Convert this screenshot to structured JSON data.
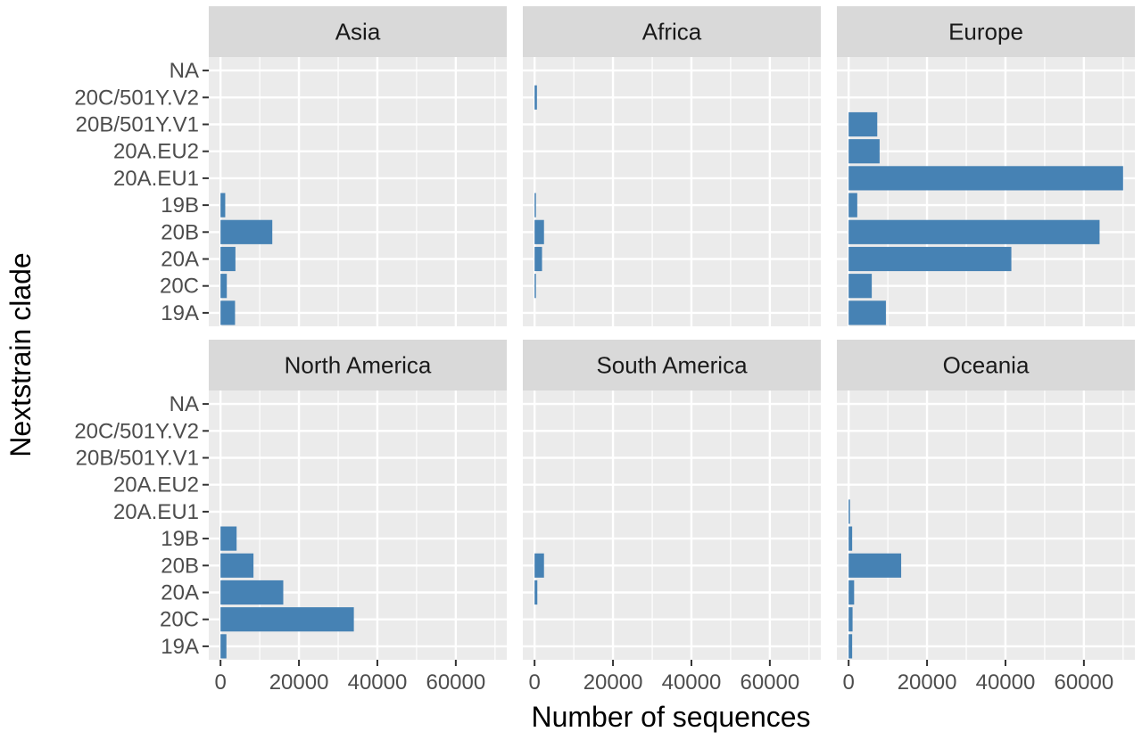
{
  "chart_data": {
    "type": "bar",
    "orientation": "horizontal",
    "xlabel": "Number of sequences",
    "ylabel": "Nextstrain clade",
    "xlim": [
      -3000,
      73000
    ],
    "xticks": [
      0,
      20000,
      40000,
      60000
    ],
    "categories": [
      "NA",
      "20C/501Y.V2",
      "20B/501Y.V1",
      "20A.EU2",
      "20A.EU1",
      "19B",
      "20B",
      "20A",
      "20C",
      "19A"
    ],
    "bar_color": "#4682b4",
    "panel_bg": "#ebebeb",
    "strip_bg": "#d9d9d9",
    "panels": [
      {
        "region": "Asia",
        "values": [
          0,
          0,
          0,
          0,
          0,
          1200,
          13200,
          3800,
          1600,
          3700
        ]
      },
      {
        "region": "Africa",
        "values": [
          0,
          600,
          0,
          0,
          0,
          300,
          2400,
          1900,
          200,
          0
        ]
      },
      {
        "region": "Europe",
        "values": [
          0,
          0,
          7300,
          7900,
          70000,
          2200,
          64000,
          41500,
          5900,
          9500
        ]
      },
      {
        "region": "North America",
        "values": [
          0,
          0,
          0,
          0,
          0,
          4100,
          8400,
          16000,
          34000,
          1500
        ]
      },
      {
        "region": "South America",
        "values": [
          0,
          0,
          0,
          0,
          0,
          0,
          2400,
          700,
          0,
          0
        ]
      },
      {
        "region": "Oceania",
        "values": [
          0,
          0,
          0,
          0,
          300,
          900,
          13400,
          1400,
          1000,
          900
        ]
      }
    ]
  }
}
